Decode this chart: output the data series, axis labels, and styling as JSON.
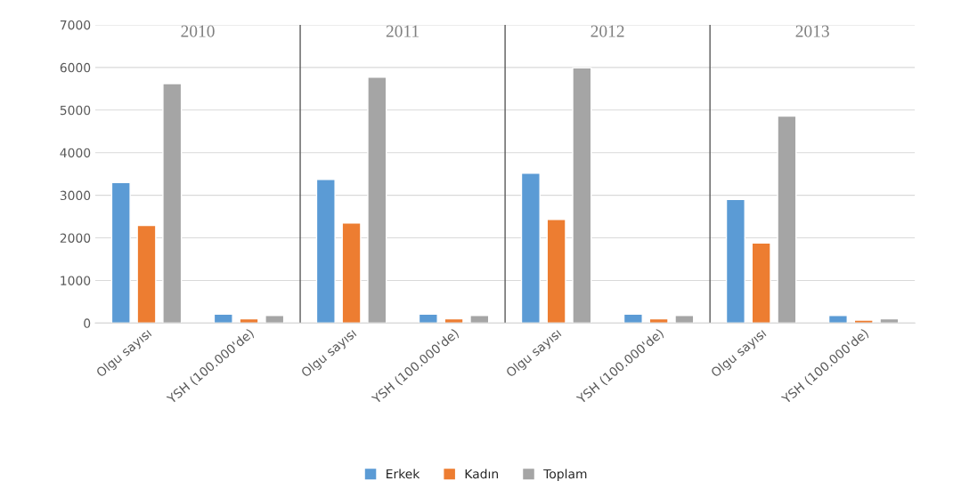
{
  "chart_data": {
    "type": "bar",
    "categories": [
      "Olgu sayısı",
      "YSH (100.000'de)",
      "Olgu sayısı",
      "YSH (100.000'de)",
      "Olgu sayısı",
      "YSH (100.000'de)",
      "Olgu sayısı",
      "YSH (100.000'de)"
    ],
    "series": [
      {
        "name": "Erkek",
        "color": "#5b9bd5",
        "values": [
          3300,
          210,
          3370,
          210,
          3520,
          210,
          2900,
          180
        ]
      },
      {
        "name": "Kadın",
        "color": "#ed7d31",
        "values": [
          2290,
          100,
          2350,
          100,
          2430,
          100,
          1880,
          70
        ]
      },
      {
        "name": "Toplam",
        "color": "#a5a5a5",
        "values": [
          5620,
          180,
          5770,
          180,
          5990,
          180,
          4860,
          100
        ]
      }
    ],
    "annotations": [
      "2010",
      "2011",
      "2012",
      "2013"
    ],
    "ylim": [
      0,
      7000
    ],
    "yticks": [
      0,
      1000,
      2000,
      3000,
      4000,
      5000,
      6000,
      7000
    ],
    "grid": "y",
    "legend": "bottom"
  }
}
